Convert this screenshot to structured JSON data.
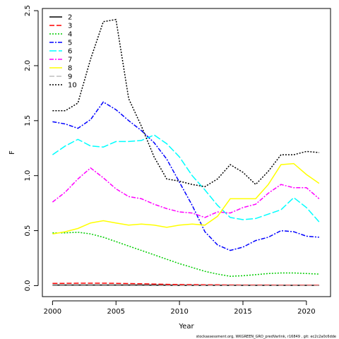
{
  "chart_data": {
    "type": "line",
    "xlabel": "Year",
    "ylabel": "F",
    "xlim": [
      1999.2,
      2021.9
    ],
    "ylim": [
      -0.1,
      2.52
    ],
    "x_ticks": [
      2000,
      2005,
      2010,
      2015,
      2020
    ],
    "y_ticks": [
      0.0,
      0.5,
      1.0,
      1.5,
      2.0,
      2.5
    ],
    "y_tick_labels": [
      "0.0",
      "0.5",
      "1.0",
      "1.5",
      "2.0",
      "2.5"
    ],
    "grid": false,
    "legend_position": "top-left",
    "x": [
      2000,
      2001,
      2002,
      2003,
      2004,
      2005,
      2006,
      2007,
      2008,
      2009,
      2010,
      2011,
      2012,
      2013,
      2014,
      2015,
      2016,
      2017,
      2018,
      2019,
      2020,
      2021
    ],
    "series": [
      {
        "name": "2",
        "color": "#000000",
        "dash": "",
        "values": [
          0.005,
          0.005,
          0.005,
          0.005,
          0.005,
          0.005,
          0.005,
          0.005,
          0.004,
          0.004,
          0.003,
          0.003,
          0.003,
          0.003,
          0.003,
          0.003,
          0.003,
          0.003,
          0.003,
          0.003,
          0.003,
          0.003
        ]
      },
      {
        "name": "3",
        "color": "#ff0000",
        "dash": "7,3",
        "values": [
          0.02,
          0.021,
          0.022,
          0.022,
          0.022,
          0.021,
          0.019,
          0.017,
          0.014,
          0.012,
          0.01,
          0.009,
          0.008,
          0.007,
          0.006,
          0.005,
          0.005,
          0.005,
          0.004,
          0.004,
          0.004,
          0.004
        ]
      },
      {
        "name": "4",
        "color": "#00cc00",
        "dash": "2,2",
        "values": [
          0.48,
          0.48,
          0.485,
          0.47,
          0.44,
          0.4,
          0.36,
          0.32,
          0.28,
          0.24,
          0.2,
          0.165,
          0.13,
          0.105,
          0.085,
          0.09,
          0.1,
          0.11,
          0.115,
          0.115,
          0.11,
          0.105
        ]
      },
      {
        "name": "5",
        "color": "#0000ff",
        "dash": "6,2,2,2",
        "values": [
          1.49,
          1.47,
          1.43,
          1.51,
          1.67,
          1.6,
          1.5,
          1.41,
          1.3,
          1.15,
          0.94,
          0.73,
          0.49,
          0.37,
          0.32,
          0.35,
          0.41,
          0.44,
          0.5,
          0.49,
          0.45,
          0.44
        ]
      },
      {
        "name": "6",
        "color": "#00ffff",
        "dash": "10,3",
        "values": [
          1.19,
          1.27,
          1.33,
          1.27,
          1.26,
          1.31,
          1.31,
          1.32,
          1.37,
          1.29,
          1.17,
          1.0,
          0.87,
          0.73,
          0.62,
          0.6,
          0.61,
          0.65,
          0.69,
          0.8,
          0.71,
          0.58
        ]
      },
      {
        "name": "7",
        "color": "#ff00ff",
        "dash": "6,2,2,2",
        "values": [
          0.76,
          0.85,
          0.97,
          1.07,
          0.98,
          0.88,
          0.81,
          0.79,
          0.74,
          0.7,
          0.67,
          0.66,
          0.62,
          0.67,
          0.66,
          0.71,
          0.74,
          0.84,
          0.92,
          0.89,
          0.89,
          0.79
        ]
      },
      {
        "name": "8",
        "color": "#ffff00",
        "dash": "",
        "values": [
          0.47,
          0.49,
          0.52,
          0.57,
          0.59,
          0.57,
          0.55,
          0.56,
          0.55,
          0.53,
          0.55,
          0.56,
          0.55,
          0.63,
          0.79,
          0.79,
          0.79,
          0.92,
          1.1,
          1.11,
          1.01,
          0.93
        ]
      },
      {
        "name": "9",
        "color": "#bebebe",
        "dash": "7,3",
        "values": [
          0.0,
          0.0,
          0.0,
          0.0,
          0.0,
          0.0,
          0.0,
          0.0,
          0.0,
          0.0,
          0.0,
          0.0,
          0.0,
          0.0,
          0.0,
          0.0,
          0.0,
          0.0,
          0.0,
          0.0,
          0.0,
          0.0
        ]
      },
      {
        "name": "10",
        "color": "#000000",
        "dash": "2,2",
        "values": [
          1.59,
          1.59,
          1.66,
          2.06,
          2.4,
          2.42,
          1.7,
          1.45,
          1.17,
          0.97,
          0.95,
          0.92,
          0.9,
          0.97,
          1.1,
          1.03,
          0.92,
          1.04,
          1.19,
          1.19,
          1.22,
          1.21
        ]
      }
    ]
  },
  "footer": "stockassessment.org,  WKGREEN_GRO_predVarlink,  r16849 ,  git:  ec2c2a0c6dde"
}
